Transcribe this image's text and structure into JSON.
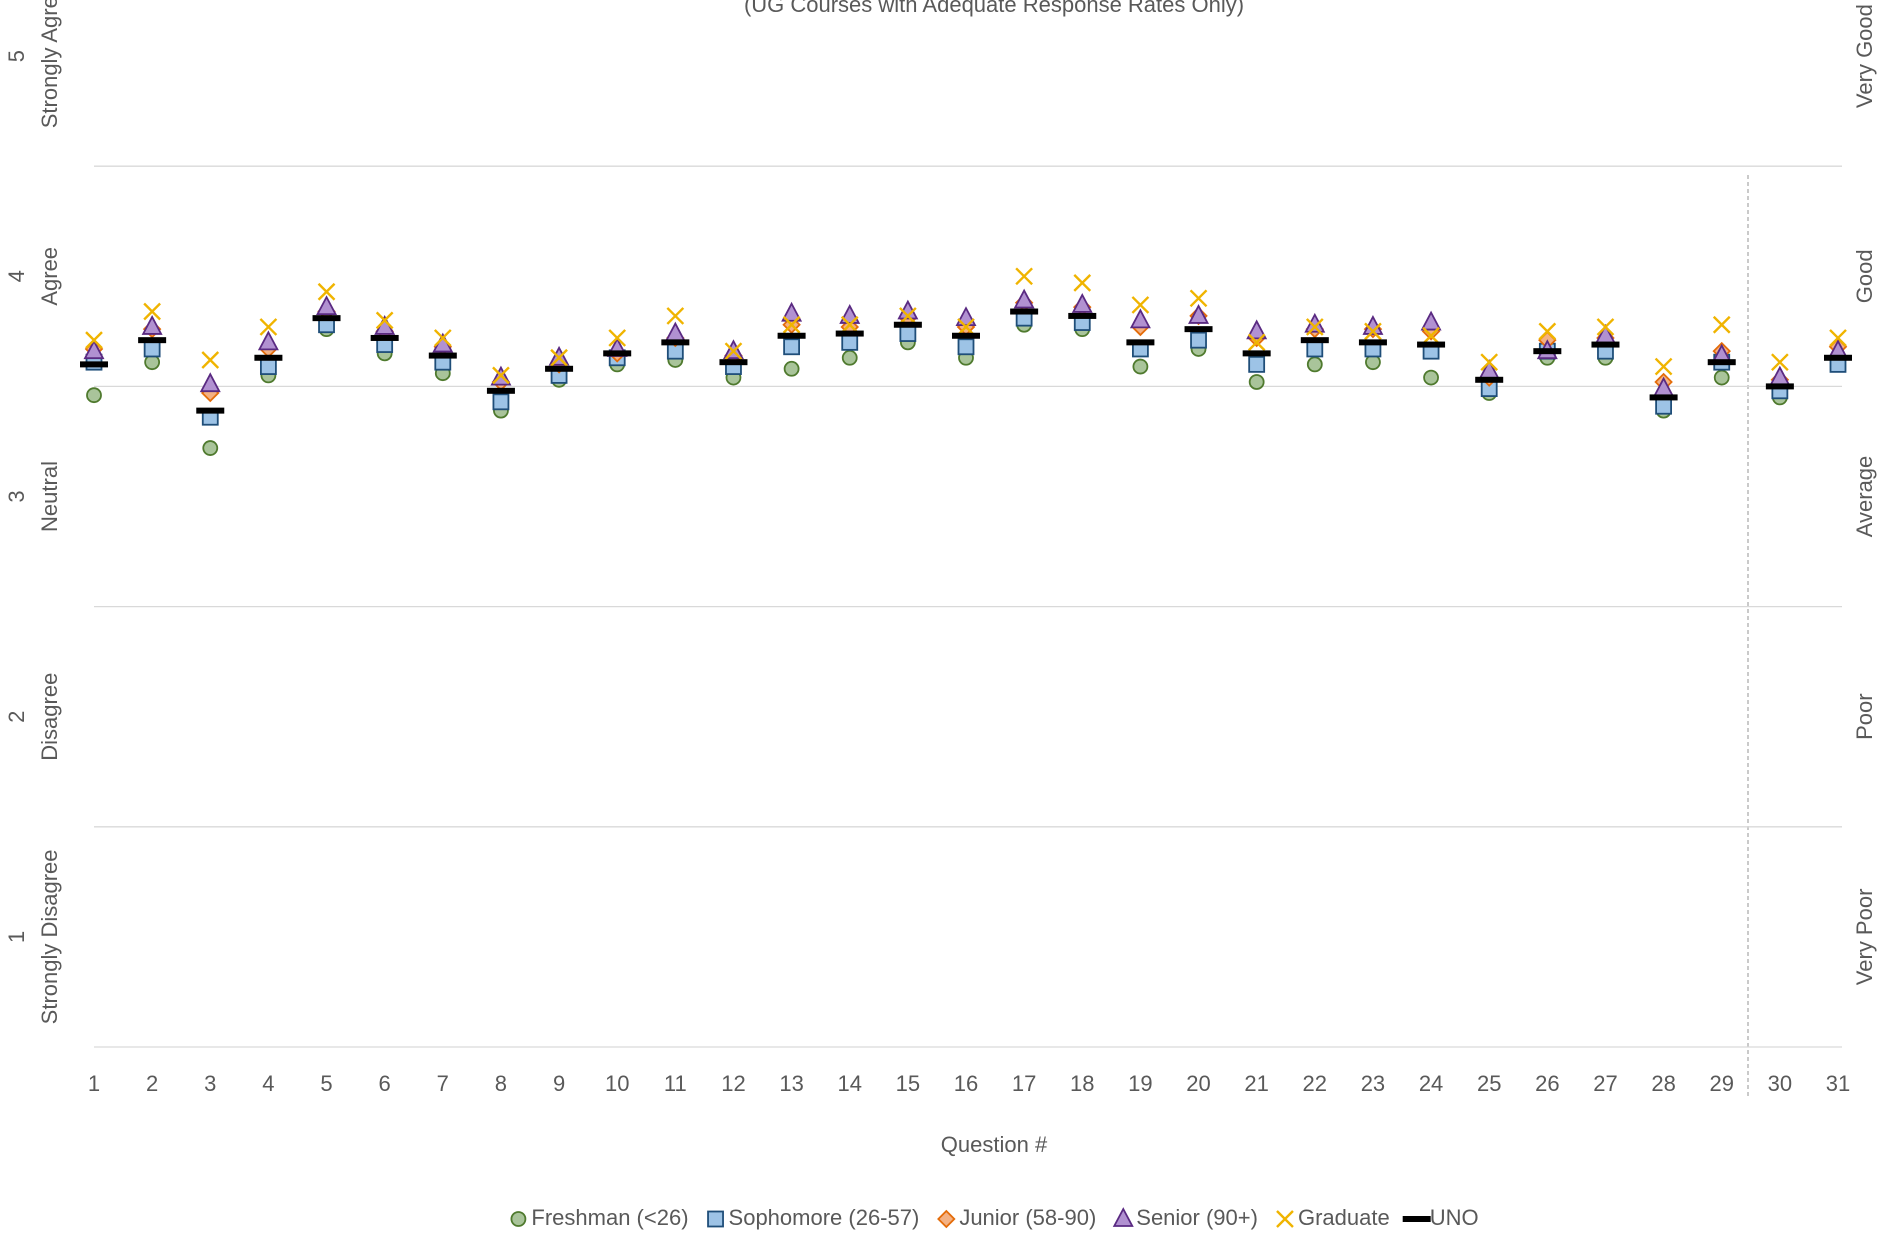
{
  "chart_data": {
    "type": "scatter",
    "subtitle": "(UG Courses with Adequate Response Rates Only)",
    "x_label": "Question #",
    "categories": [
      "1",
      "2",
      "3",
      "4",
      "5",
      "6",
      "7",
      "8",
      "9",
      "10",
      "11",
      "12",
      "13",
      "14",
      "15",
      "16",
      "17",
      "18",
      "19",
      "20",
      "21",
      "22",
      "23",
      "24",
      "25",
      "26",
      "27",
      "28",
      "29",
      "30",
      "31"
    ],
    "ylim": [
      0.5,
      5.5
    ],
    "yticks": [
      1,
      2,
      3,
      4,
      5
    ],
    "ytick_descriptions": [
      "Strongly Disagree",
      "Disagree",
      "Neutral",
      "Agree",
      "Strongly Agree"
    ],
    "y2lim": [
      0.5,
      5.5
    ],
    "y2ticks": [
      {
        "value": 1,
        "label": "Very Poor"
      },
      {
        "value": 2,
        "label": "Poor"
      },
      {
        "value": 3,
        "label": "Average"
      },
      {
        "value": 4,
        "label": "Good"
      },
      {
        "value": 5,
        "label": "Very Good"
      }
    ],
    "grid_lines": [
      0.5,
      1.5,
      2.5,
      3.5,
      4.5
    ],
    "legend": "bottom",
    "series": [
      {
        "name": "Freshman (<26)",
        "marker": "circle",
        "color": "#a9c49a",
        "edge": "#4f7a2e",
        "values": [
          3.46,
          3.61,
          3.22,
          3.55,
          3.76,
          3.65,
          3.56,
          3.39,
          3.53,
          3.6,
          3.62,
          3.54,
          3.58,
          3.63,
          3.7,
          3.63,
          3.78,
          3.76,
          3.59,
          3.67,
          3.52,
          3.6,
          3.61,
          3.54,
          3.47,
          3.63,
          3.63,
          3.39,
          3.54,
          3.45,
          3.61
        ]
      },
      {
        "name": "Sophomore (26-57)",
        "marker": "square",
        "color": "#9dc3e6",
        "edge": "#1f4e79",
        "values": [
          3.61,
          3.67,
          3.36,
          3.59,
          3.78,
          3.69,
          3.61,
          3.43,
          3.55,
          3.63,
          3.66,
          3.59,
          3.68,
          3.7,
          3.74,
          3.68,
          3.81,
          3.79,
          3.67,
          3.71,
          3.6,
          3.67,
          3.67,
          3.66,
          3.49,
          3.66,
          3.66,
          3.41,
          3.61,
          3.48,
          3.6
        ]
      },
      {
        "name": "Junior (58-90)",
        "marker": "diamond",
        "color": "#f4b183",
        "edge": "#e46c0a",
        "values": [
          3.67,
          3.76,
          3.47,
          3.67,
          3.84,
          3.75,
          3.68,
          3.52,
          3.6,
          3.65,
          3.72,
          3.64,
          3.78,
          3.77,
          3.81,
          3.77,
          3.88,
          3.86,
          3.77,
          3.82,
          3.72,
          3.76,
          3.76,
          3.75,
          3.54,
          3.71,
          3.72,
          3.52,
          3.66,
          3.53,
          3.68
        ]
      },
      {
        "name": "Senior (90+)",
        "marker": "triangle",
        "color": "#b191d1",
        "edge": "#5a2a82",
        "values": [
          3.66,
          3.77,
          3.51,
          3.7,
          3.86,
          3.77,
          3.69,
          3.54,
          3.63,
          3.67,
          3.74,
          3.66,
          3.83,
          3.82,
          3.84,
          3.81,
          3.89,
          3.87,
          3.8,
          3.82,
          3.75,
          3.78,
          3.77,
          3.79,
          3.57,
          3.66,
          3.73,
          3.49,
          3.64,
          3.54,
          3.66
        ]
      },
      {
        "name": "Graduate",
        "marker": "x",
        "color": "#f0b400",
        "edge": "#f0b400",
        "values": [
          3.71,
          3.84,
          3.62,
          3.77,
          3.93,
          3.8,
          3.72,
          3.55,
          3.63,
          3.72,
          3.82,
          3.66,
          3.78,
          3.78,
          3.82,
          3.77,
          4.0,
          3.97,
          3.87,
          3.9,
          3.7,
          3.77,
          3.75,
          3.73,
          3.61,
          3.75,
          3.77,
          3.59,
          3.78,
          3.61,
          3.72
        ]
      },
      {
        "name": "UNO",
        "marker": "dash",
        "color": "#000000",
        "edge": "#000000",
        "values": [
          3.6,
          3.71,
          3.39,
          3.63,
          3.81,
          3.72,
          3.64,
          3.48,
          3.58,
          3.65,
          3.7,
          3.61,
          3.73,
          3.74,
          3.78,
          3.73,
          3.84,
          3.82,
          3.7,
          3.76,
          3.65,
          3.71,
          3.7,
          3.69,
          3.53,
          3.66,
          3.69,
          3.45,
          3.61,
          3.5,
          3.63
        ]
      }
    ]
  }
}
